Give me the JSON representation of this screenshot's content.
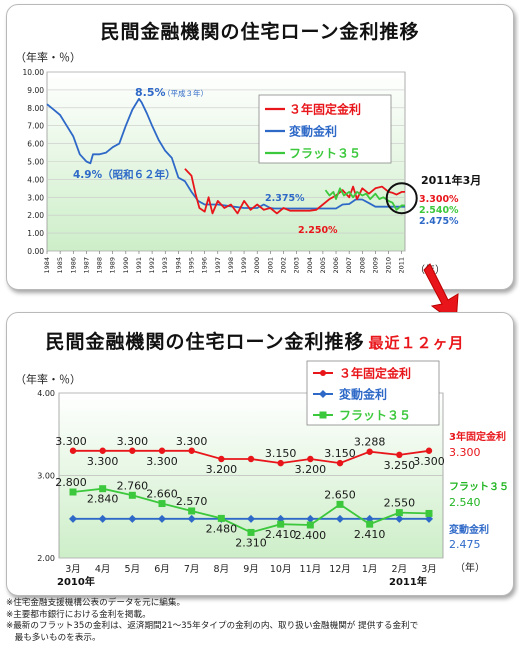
{
  "top": {
    "title": "民間金融機関の住宅ローン金利推移",
    "y_unit": "（年率・％）",
    "x_unit": "（年）",
    "y_ticks": [
      "10.00",
      "9.00",
      "8.00",
      "7.00",
      "6.00",
      "5.00",
      "4.00",
      "3.00",
      "2.00",
      "1.00",
      "0.00"
    ],
    "legend": [
      "３年固定金利",
      "変動金利",
      "フラット３５"
    ],
    "annotations": {
      "peak": "8.5%",
      "peak_note": "（平成３年）",
      "s1987": "4.9%（昭和６２年）",
      "v2375": "2.375%",
      "v2250": "2.250%",
      "date": "2011年3月",
      "v3300": "3.300%",
      "v2540": "2.540%",
      "v2475": "2.475%"
    }
  },
  "bottom": {
    "title": "民間金融機関の住宅ローン金利推移",
    "subtitle": "最近１２ヶ月",
    "y_unit": "（年率・％）",
    "x_unit": "（年）",
    "year_start": "2010年",
    "year_end": "2011年",
    "y_ticks": [
      "4.00",
      "3.00",
      "2.00"
    ],
    "legend": [
      "３年固定金利",
      "変動金利",
      "フラット３５"
    ],
    "end_labels": {
      "fixed_name": "3年固定金利",
      "fixed_val": "3.300",
      "flat_name": "フラット３５",
      "flat_val": "2.540",
      "var_name": "変動金利",
      "var_val": "2.475"
    }
  },
  "footnotes": [
    "※住宅金融支援機構公表のデータを元に編集。",
    "※主要都市銀行における金利を掲載。",
    "※最新のフラット35の金利は、返済期間21～35年タイプの金利の内、取り扱い金融機関が 提供する金利で",
    "　最も多いものを表示。"
  ],
  "colors": {
    "fixed": "#e8161b",
    "variable": "#2e69c8",
    "flat": "#3cc83c",
    "title_red": "#e8161b"
  },
  "chart_data": [
    {
      "type": "line",
      "title": "民間金融機関の住宅ローン金利推移",
      "ylabel": "（年率・％）",
      "xlabel": "（年）",
      "ylim": [
        0,
        10
      ],
      "x_range": [
        1984,
        2011.25
      ],
      "categories": [
        "1984",
        "1985",
        "1986",
        "1987",
        "1988",
        "1989",
        "1990",
        "1991",
        "1992",
        "1993",
        "1994",
        "1995",
        "1996",
        "1997",
        "1998",
        "1999",
        "2000",
        "2001",
        "2002",
        "2003",
        "2004",
        "2005",
        "2006",
        "2007",
        "2008",
        "2009",
        "2010",
        "2011"
      ],
      "series": [
        {
          "name": "変動金利",
          "x": [
            1984,
            1984.5,
            1985,
            1985.5,
            1986,
            1986.5,
            1987,
            1987.3,
            1987.5,
            1988,
            1988.5,
            1989,
            1989.5,
            1990,
            1990.5,
            1991,
            1991.2,
            1991.6,
            1992,
            1992.5,
            1993,
            1993.5,
            1994,
            1994.5,
            1995,
            1995.5,
            1996,
            1997,
            1998,
            1999,
            2000,
            2000.5,
            2001,
            2001.3,
            2002,
            2003,
            2004,
            2005,
            2006,
            2006.5,
            2007,
            2007.5,
            2008,
            2008.5,
            2009,
            2010,
            2011,
            2011.25
          ],
          "values": [
            8.2,
            7.9,
            7.6,
            7.0,
            6.4,
            5.4,
            5.0,
            4.9,
            5.4,
            5.4,
            5.5,
            5.8,
            6.0,
            7.0,
            7.9,
            8.5,
            8.3,
            7.7,
            7.0,
            6.2,
            5.6,
            5.2,
            4.1,
            3.9,
            3.3,
            2.8,
            2.6,
            2.6,
            2.5,
            2.4,
            2.4,
            2.6,
            2.4,
            2.375,
            2.375,
            2.375,
            2.375,
            2.375,
            2.375,
            2.6,
            2.625,
            2.875,
            2.875,
            2.675,
            2.475,
            2.475,
            2.475,
            2.475
          ]
        },
        {
          "name": "３年固定金利",
          "x": [
            1994.5,
            1995,
            1995.3,
            1995.6,
            1996,
            1996.3,
            1996.6,
            1997,
            1997.5,
            1998,
            1998.5,
            1999,
            1999.5,
            2000,
            2000.5,
            2001,
            2001.5,
            2002,
            2002.5,
            2003,
            2003.5,
            2004,
            2004.5,
            2005,
            2005.5,
            2006,
            2006.5,
            2007,
            2007.3,
            2007.6,
            2008,
            2008.5,
            2009,
            2009.5,
            2010,
            2010.3,
            2010.6,
            2011,
            2011.25
          ],
          "values": [
            4.6,
            4.2,
            3.2,
            2.4,
            2.2,
            3.0,
            2.1,
            2.8,
            2.4,
            2.6,
            2.1,
            2.8,
            2.3,
            2.6,
            2.3,
            2.4,
            2.1,
            2.4,
            2.25,
            2.25,
            2.25,
            2.25,
            2.3,
            2.6,
            2.9,
            3.1,
            3.4,
            3.0,
            3.6,
            2.9,
            3.5,
            3.2,
            3.5,
            3.6,
            3.3,
            3.25,
            3.15,
            3.3,
            3.3
          ]
        },
        {
          "name": "フラット３５",
          "x": [
            2005.2,
            2005.5,
            2005.8,
            2006,
            2006.3,
            2006.6,
            2007,
            2007.3,
            2007.6,
            2008,
            2008.3,
            2008.6,
            2009,
            2009.3,
            2009.6,
            2010,
            2010.3,
            2010.6,
            2011,
            2011.25
          ],
          "values": [
            3.4,
            3.1,
            3.3,
            2.9,
            3.5,
            3.1,
            3.3,
            3.0,
            3.3,
            3.1,
            3.2,
            2.9,
            3.2,
            2.9,
            3.0,
            2.8,
            2.7,
            2.3,
            2.55,
            2.54
          ]
        }
      ]
    },
    {
      "type": "line",
      "title": "民間金融機関の住宅ローン金利推移",
      "subtitle": "最近１２ヶ月",
      "ylabel": "（年率・％）",
      "xlabel": "（年）",
      "ylim": [
        2,
        4
      ],
      "categories": [
        "3月",
        "4月",
        "5月",
        "6月",
        "7月",
        "8月",
        "9月",
        "10月",
        "11月",
        "12月",
        "1月",
        "2月",
        "3月"
      ],
      "series": [
        {
          "name": "３年固定金利",
          "values": [
            3.3,
            3.3,
            3.3,
            3.3,
            3.3,
            3.2,
            3.2,
            3.15,
            3.2,
            3.15,
            3.288,
            3.25,
            3.3
          ],
          "labels": [
            "3.300",
            "3.300",
            "3.300",
            "3.300",
            "3.300",
            "3.200",
            "",
            "3.150",
            "3.200",
            "3.150",
            "3.288",
            "3.250",
            "3.300"
          ],
          "label_pos": [
            "above",
            "below",
            "above",
            "below",
            "above",
            "below",
            "",
            "above",
            "below",
            "above",
            "above",
            "below",
            "none"
          ]
        },
        {
          "name": "変動金利",
          "values": [
            2.475,
            2.475,
            2.475,
            2.475,
            2.475,
            2.475,
            2.475,
            2.475,
            2.475,
            2.475,
            2.475,
            2.475,
            2.475
          ]
        },
        {
          "name": "フラット３５",
          "values": [
            2.8,
            2.84,
            2.76,
            2.66,
            2.57,
            2.48,
            2.31,
            2.41,
            2.4,
            2.65,
            2.41,
            2.55,
            2.54
          ],
          "labels": [
            "2.800",
            "2.840",
            "2.760",
            "2.660",
            "2.570",
            "2.480",
            "2.310",
            "2.410",
            "2.400",
            "2.650",
            "2.410",
            "2.550",
            ""
          ],
          "label_pos": [
            "above",
            "below",
            "above",
            "above",
            "above",
            "below",
            "below",
            "below",
            "below",
            "above",
            "below",
            "above",
            "none"
          ]
        }
      ]
    }
  ]
}
